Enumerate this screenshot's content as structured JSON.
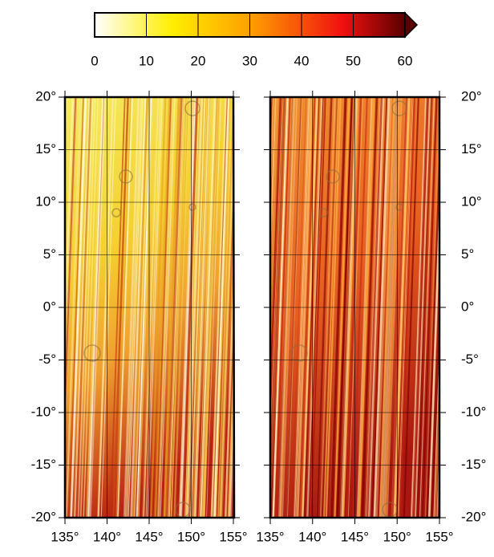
{
  "colorbar": {
    "lim": [
      0,
      60
    ],
    "ticks": [
      0,
      10,
      20,
      30,
      40,
      50,
      60
    ]
  },
  "panels": [
    {
      "lon_lim": [
        135,
        155
      ],
      "lat_lim": [
        -20,
        20
      ],
      "lon_ticks": [
        {
          "value": 135,
          "label": "135°"
        },
        {
          "value": 140,
          "label": "140°"
        },
        {
          "value": 145,
          "label": "145°"
        },
        {
          "value": 150,
          "label": "150°"
        },
        {
          "value": 155,
          "label": "155°"
        }
      ],
      "lat_ticks": [
        {
          "value": 20,
          "label": "20°"
        },
        {
          "value": 15,
          "label": "15°"
        },
        {
          "value": 10,
          "label": "10°"
        },
        {
          "value": 5,
          "label": "5°"
        },
        {
          "value": 0,
          "label": "0°"
        },
        {
          "value": -5,
          "label": "-5°"
        },
        {
          "value": -10,
          "label": "-10°"
        },
        {
          "value": -15,
          "label": "-15°"
        },
        {
          "value": -20,
          "label": "-20°"
        }
      ]
    },
    {
      "lon_lim": [
        135,
        155
      ],
      "lat_lim": [
        -20,
        20
      ],
      "lon_ticks": [
        {
          "value": 135,
          "label": "135°"
        },
        {
          "value": 140,
          "label": "140°"
        },
        {
          "value": 145,
          "label": "145°"
        },
        {
          "value": 150,
          "label": "150°"
        },
        {
          "value": 155,
          "label": "155°"
        }
      ],
      "lat_ticks": [
        {
          "value": 20,
          "label": "20°"
        },
        {
          "value": 15,
          "label": "15°"
        },
        {
          "value": 10,
          "label": "10°"
        },
        {
          "value": 5,
          "label": "5°"
        },
        {
          "value": 0,
          "label": "0°"
        },
        {
          "value": -5,
          "label": "-5°"
        },
        {
          "value": -10,
          "label": "-10°"
        },
        {
          "value": -15,
          "label": "-15°"
        },
        {
          "value": -20,
          "label": "-20°"
        }
      ]
    }
  ]
}
